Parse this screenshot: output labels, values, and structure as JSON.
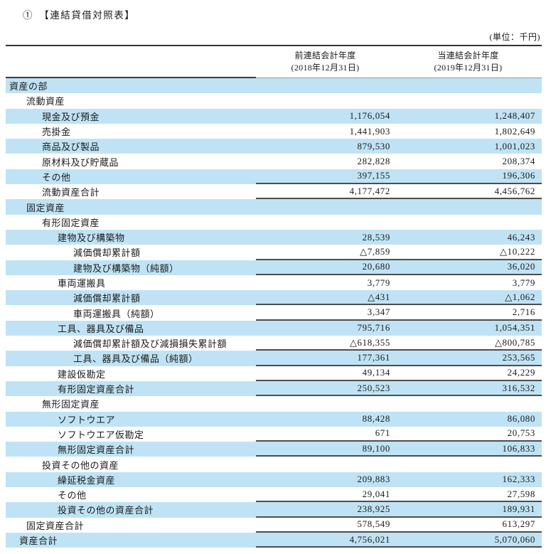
{
  "title": "①　【連結貸借対照表】",
  "unit_note": "(単位：千円)",
  "columns": [
    {
      "title": "前連結会計年度",
      "date": "(2018年12月31日)"
    },
    {
      "title": "当連結会計年度",
      "date": "(2019年12月31日)"
    }
  ],
  "rows": [
    {
      "label": "資産の部",
      "level": "0",
      "prev": "",
      "curr": "",
      "rule": false
    },
    {
      "label": "流動資産",
      "level": "1",
      "prev": "",
      "curr": "",
      "rule": false
    },
    {
      "label": "現金及び預金",
      "level": "2",
      "prev": "1,176,054",
      "curr": "1,248,407",
      "rule": false
    },
    {
      "label": "売掛金",
      "level": "2",
      "prev": "1,441,903",
      "curr": "1,802,649",
      "rule": false
    },
    {
      "label": "商品及び製品",
      "level": "2",
      "prev": "879,530",
      "curr": "1,001,023",
      "rule": false
    },
    {
      "label": "原材料及び貯蔵品",
      "level": "2",
      "prev": "282,828",
      "curr": "208,374",
      "rule": false
    },
    {
      "label": "その他",
      "level": "2",
      "prev": "397,155",
      "curr": "196,306",
      "rule": true
    },
    {
      "label": "流動資産合計",
      "level": "2",
      "prev": "4,177,472",
      "curr": "4,456,762",
      "rule": true
    },
    {
      "label": "固定資産",
      "level": "1",
      "prev": "",
      "curr": "",
      "rule": false
    },
    {
      "label": "有形固定資産",
      "level": "2",
      "prev": "",
      "curr": "",
      "rule": false
    },
    {
      "label": "建物及び構築物",
      "level": "3",
      "prev": "28,539",
      "curr": "46,243",
      "rule": false
    },
    {
      "label": "減価償却累計額",
      "level": "4",
      "prev": "△7,859",
      "curr": "△10,222",
      "rule": true
    },
    {
      "label": "建物及び構築物（純額）",
      "level": "4",
      "prev": "20,680",
      "curr": "36,020",
      "rule": true
    },
    {
      "label": "車両運搬具",
      "level": "3",
      "prev": "3,779",
      "curr": "3,779",
      "rule": false
    },
    {
      "label": "減価償却累計額",
      "level": "4",
      "prev": "△431",
      "curr": "△1,062",
      "rule": true
    },
    {
      "label": "車両運搬具（純額）",
      "level": "4",
      "prev": "3,347",
      "curr": "2,716",
      "rule": true
    },
    {
      "label": "工具、器具及び備品",
      "level": "3",
      "prev": "795,716",
      "curr": "1,054,351",
      "rule": false
    },
    {
      "label": "減価償却累計額及び減損損失累計額",
      "level": "4",
      "prev": "△618,355",
      "curr": "△800,785",
      "rule": true
    },
    {
      "label": "工具、器具及び備品（純額）",
      "level": "4",
      "prev": "177,361",
      "curr": "253,565",
      "rule": true
    },
    {
      "label": "建設仮勘定",
      "level": "3",
      "prev": "49,134",
      "curr": "24,229",
      "rule": true
    },
    {
      "label": "有形固定資産合計",
      "level": "3",
      "prev": "250,523",
      "curr": "316,532",
      "rule": true
    },
    {
      "label": "無形固定資産",
      "level": "2",
      "prev": "",
      "curr": "",
      "rule": false
    },
    {
      "label": "ソフトウエア",
      "level": "3",
      "prev": "88,428",
      "curr": "86,080",
      "rule": false
    },
    {
      "label": "ソフトウエア仮勘定",
      "level": "3",
      "prev": "671",
      "curr": "20,753",
      "rule": true
    },
    {
      "label": "無形固定資産合計",
      "level": "3",
      "prev": "89,100",
      "curr": "106,833",
      "rule": true
    },
    {
      "label": "投資その他の資産",
      "level": "2",
      "prev": "",
      "curr": "",
      "rule": false
    },
    {
      "label": "繰延税金資産",
      "level": "3",
      "prev": "209,883",
      "curr": "162,333",
      "rule": false
    },
    {
      "label": "その他",
      "level": "3",
      "prev": "29,041",
      "curr": "27,598",
      "rule": true
    },
    {
      "label": "投資その他の資産合計",
      "level": "3",
      "prev": "238,925",
      "curr": "189,931",
      "rule": true
    },
    {
      "label": "固定資産合計",
      "level": "1",
      "prev": "578,549",
      "curr": "613,297",
      "rule": true
    },
    {
      "label": "資産合計",
      "level": "g",
      "prev": "4,756,021",
      "curr": "5,070,060",
      "rule": true
    }
  ]
}
